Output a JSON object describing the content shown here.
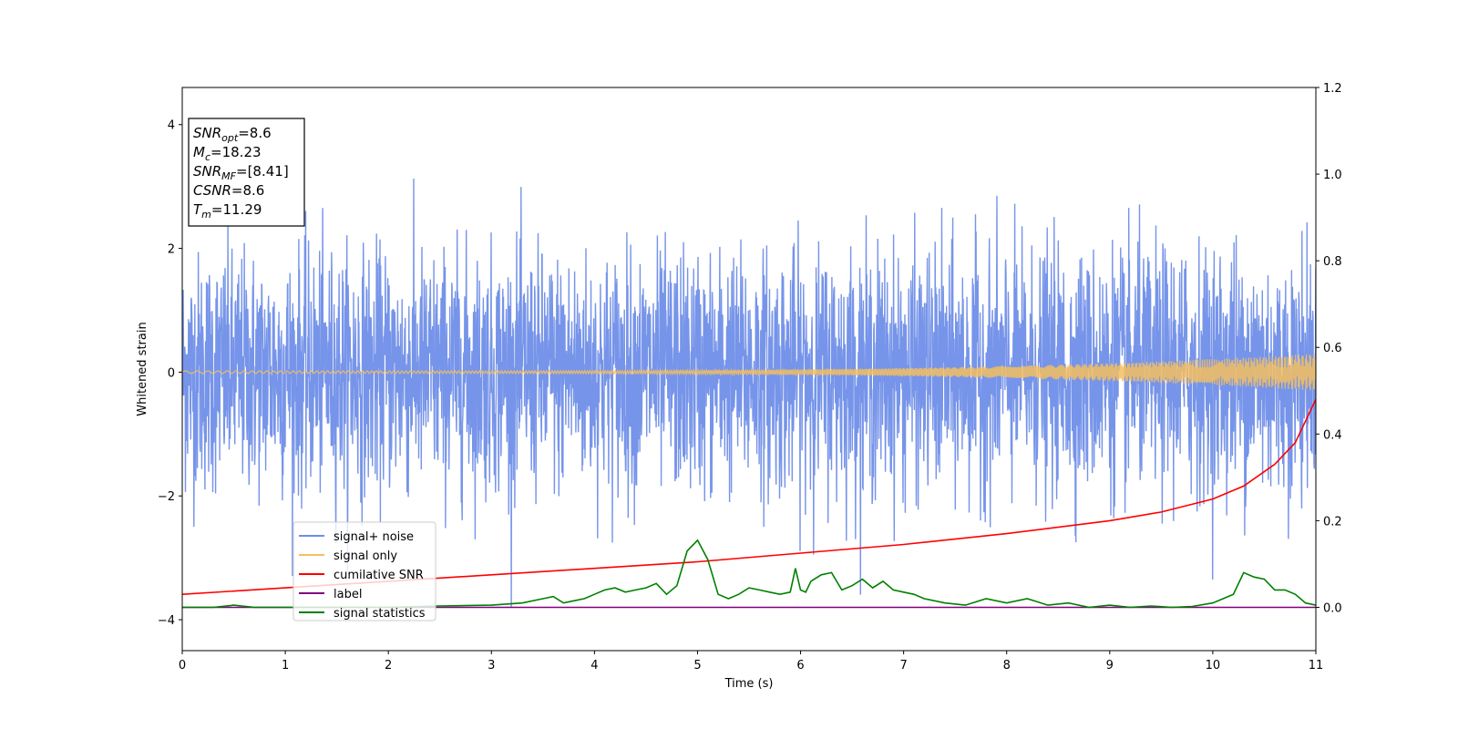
{
  "chart_data": {
    "type": "line",
    "xlabel": "Time (s)",
    "ylabel": "Whitened strain",
    "ylabel_right": "",
    "xlim": [
      0,
      11
    ],
    "ylim_left": [
      -4.5,
      4.6
    ],
    "ylim_right": [
      -0.1,
      1.2
    ],
    "x_ticks": [
      0,
      1,
      2,
      3,
      4,
      5,
      6,
      7,
      8,
      9,
      10,
      11
    ],
    "y_ticks_left": [
      -4,
      -2,
      0,
      2,
      4
    ],
    "y_ticks_right": [
      0.0,
      0.2,
      0.4,
      0.6,
      0.8,
      1.0,
      1.2
    ],
    "x_tick_labels": [
      "0",
      "1",
      "2",
      "3",
      "4",
      "5",
      "6",
      "7",
      "8",
      "9",
      "10",
      "11"
    ],
    "y_tick_labels_left": [
      "−4",
      "−2",
      "0",
      "2",
      "4"
    ],
    "y_tick_labels_right": [
      "0.0",
      "0.2",
      "0.4",
      "0.6",
      "0.8",
      "1.0",
      "1.2"
    ],
    "grid": false,
    "legend_position": "lower-left",
    "annotation": {
      "lines": [
        {
          "base": "SNR",
          "sub": "opt",
          "value": "=8.6"
        },
        {
          "base": "M",
          "sub": "c",
          "value": "=18.23"
        },
        {
          "base": "SNR",
          "sub": "MF",
          "value": "=[8.41]"
        },
        {
          "base": "CSNR",
          "sub": "",
          "value": "=8.6"
        },
        {
          "base": "T",
          "sub": "m",
          "value": "=11.29"
        }
      ]
    },
    "series": [
      {
        "name": "signal+ noise",
        "color": "#6f8ee8",
        "axis": "left",
        "description_level": "noise band ±1.5 with peaks to ±4",
        "amplitude": 1.5
      },
      {
        "name": "signal only",
        "color": "#f5bf60",
        "axis": "left",
        "amplitude_start": 0.02,
        "amplitude_end": 0.3
      },
      {
        "name": "cumilative SNR",
        "color": "#ff0000",
        "axis": "right",
        "x": [
          0,
          1,
          2,
          3,
          4,
          5,
          6,
          7,
          8,
          9,
          9.5,
          10,
          10.3,
          10.6,
          10.8,
          11
        ],
        "values": [
          0.03,
          0.045,
          0.06,
          0.075,
          0.09,
          0.105,
          0.125,
          0.145,
          0.17,
          0.2,
          0.22,
          0.25,
          0.28,
          0.33,
          0.38,
          0.48
        ]
      },
      {
        "name": "label",
        "color": "#800080",
        "axis": "right",
        "x": [
          0,
          11
        ],
        "values": [
          0.0,
          0.0
        ]
      },
      {
        "name": "signal statistics",
        "color": "#008000",
        "axis": "right",
        "x": [
          0,
          0.3,
          0.5,
          0.7,
          1,
          1.5,
          2,
          2.5,
          3,
          3.3,
          3.5,
          3.6,
          3.7,
          3.8,
          3.9,
          4,
          4.1,
          4.2,
          4.3,
          4.4,
          4.5,
          4.6,
          4.7,
          4.8,
          4.9,
          5.0,
          5.1,
          5.2,
          5.3,
          5.4,
          5.5,
          5.6,
          5.7,
          5.8,
          5.9,
          5.95,
          6.0,
          6.05,
          6.1,
          6.2,
          6.3,
          6.4,
          6.5,
          6.6,
          6.7,
          6.8,
          6.9,
          7.0,
          7.1,
          7.2,
          7.4,
          7.6,
          7.8,
          8.0,
          8.2,
          8.4,
          8.6,
          8.8,
          9.0,
          9.2,
          9.4,
          9.6,
          9.8,
          10.0,
          10.1,
          10.2,
          10.3,
          10.4,
          10.5,
          10.6,
          10.7,
          10.8,
          10.9,
          11
        ],
        "values": [
          0.0,
          0.0,
          0.005,
          0.0,
          0.0,
          0.0,
          0.0,
          0.003,
          0.005,
          0.01,
          0.02,
          0.025,
          0.01,
          0.015,
          0.02,
          0.03,
          0.04,
          0.045,
          0.035,
          0.04,
          0.045,
          0.055,
          0.03,
          0.05,
          0.13,
          0.155,
          0.11,
          0.03,
          0.02,
          0.03,
          0.045,
          0.04,
          0.035,
          0.03,
          0.035,
          0.09,
          0.04,
          0.035,
          0.06,
          0.075,
          0.08,
          0.04,
          0.05,
          0.065,
          0.045,
          0.06,
          0.04,
          0.035,
          0.03,
          0.02,
          0.01,
          0.005,
          0.02,
          0.01,
          0.02,
          0.005,
          0.01,
          0.0,
          0.005,
          0.0,
          0.003,
          0.0,
          0.002,
          0.01,
          0.02,
          0.03,
          0.08,
          0.07,
          0.065,
          0.04,
          0.04,
          0.03,
          0.01,
          0.005
        ]
      }
    ]
  }
}
